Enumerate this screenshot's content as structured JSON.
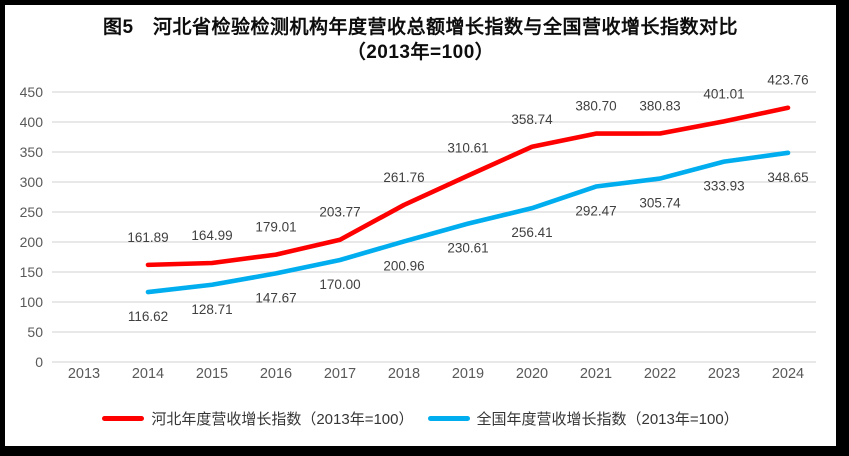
{
  "title": {
    "line1": "图5　河北省检验检测机构年度营收总额增长指数与全国营收增长指数对比",
    "line2": "（2013年=100）"
  },
  "colors": {
    "hebei_line": "#ff0000",
    "national_line": "#00aeef",
    "gridline": "#d9d9d9",
    "axis_text": "#595959",
    "data_label_text": "#404040",
    "frame_border": "#000000",
    "background": "#ffffff"
  },
  "chart_data": {
    "type": "line",
    "title": "图5　河北省检验检测机构年度营收总额增长指数与全国营收增长指数对比（2013年=100）",
    "categories": [
      "2013",
      "2014",
      "2015",
      "2016",
      "2017",
      "2018",
      "2019",
      "2020",
      "2021",
      "2022",
      "2023",
      "2024"
    ],
    "xlabel": "",
    "ylabel": "",
    "ylim": [
      0,
      450
    ],
    "yticks": [
      0,
      50,
      100,
      150,
      200,
      250,
      300,
      350,
      400,
      450
    ],
    "grid": true,
    "legend_position": "bottom",
    "series": [
      {
        "name": "河北年度营收增长指数（2013年=100）",
        "color": "#ff0000",
        "values": [
          null,
          161.89,
          164.99,
          179.01,
          203.77,
          261.76,
          310.61,
          358.74,
          380.7,
          380.83,
          401.01,
          423.76
        ],
        "labels": [
          "",
          "161.89",
          "164.99",
          "179.01",
          "203.77",
          "261.76",
          "310.61",
          "358.74",
          "380.70",
          "380.83",
          "401.01",
          "423.76"
        ]
      },
      {
        "name": "全国年度营收增长指数（2013年=100）",
        "color": "#00aeef",
        "values": [
          null,
          116.62,
          128.71,
          147.67,
          170.0,
          200.96,
          230.61,
          256.41,
          292.47,
          305.74,
          333.93,
          348.65
        ],
        "labels": [
          "",
          "116.62",
          "128.71",
          "147.67",
          "170.00",
          "200.96",
          "230.61",
          "256.41",
          "292.47",
          "305.74",
          "333.93",
          "348.65"
        ]
      }
    ]
  }
}
